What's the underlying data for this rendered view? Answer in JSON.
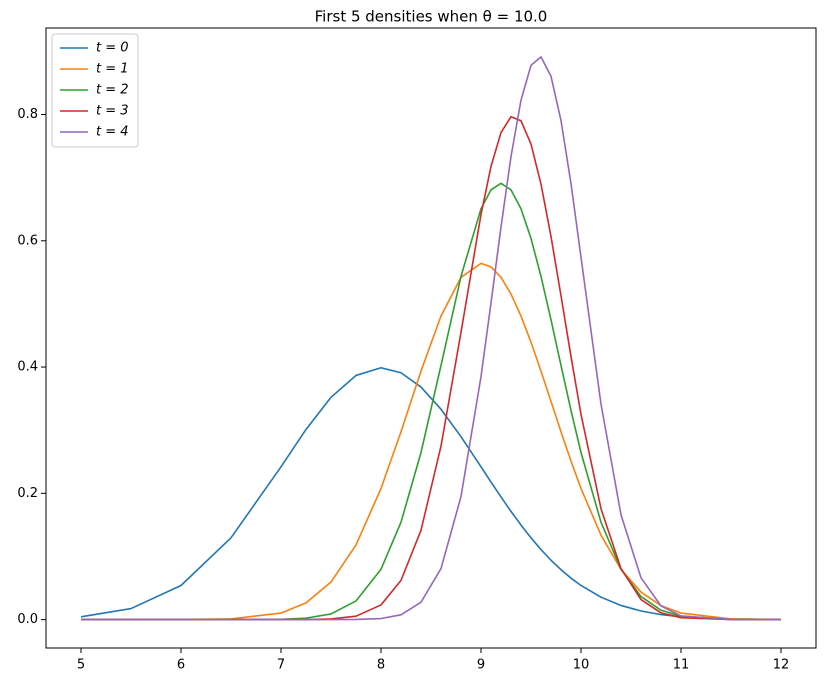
{
  "chart_data": {
    "type": "line",
    "title": "First 5 densities when θ = 10.0",
    "x": [
      5,
      5.5,
      6,
      6.5,
      7,
      7.25,
      7.5,
      7.75,
      8,
      8.2,
      8.4,
      8.6,
      8.8,
      9,
      9.1,
      9.2,
      9.3,
      9.4,
      9.5,
      9.6,
      9.7,
      9.8,
      9.9,
      10,
      10.2,
      10.4,
      10.6,
      10.8,
      11,
      11.5,
      12
    ],
    "series": [
      {
        "name": "t = 0",
        "color": "#1f77b4",
        "values": [
          0.0044,
          0.0175,
          0.054,
          0.1295,
          0.242,
          0.3011,
          0.3521,
          0.3867,
          0.3989,
          0.391,
          0.3683,
          0.3332,
          0.2897,
          0.242,
          0.2179,
          0.1942,
          0.1714,
          0.1497,
          0.1295,
          0.1109,
          0.094,
          0.079,
          0.0656,
          0.054,
          0.0355,
          0.0224,
          0.0136,
          0.0079,
          0.0044,
          0.0009,
          0.0001
        ]
      },
      {
        "name": "t = 1",
        "color": "#ff7f0e",
        "values": [
          0,
          0,
          0.0001,
          0.0011,
          0.0103,
          0.0264,
          0.0595,
          0.1182,
          0.2076,
          0.2975,
          0.3936,
          0.4808,
          0.5421,
          0.5642,
          0.5586,
          0.5421,
          0.5156,
          0.4808,
          0.4394,
          0.3936,
          0.3456,
          0.2975,
          0.251,
          0.2076,
          0.1337,
          0.0795,
          0.0436,
          0.0221,
          0.0103,
          0.0011,
          0.0001
        ]
      },
      {
        "name": "t = 2",
        "color": "#2ca02c",
        "values": [
          0,
          0,
          0,
          0,
          0.0005,
          0.0023,
          0.009,
          0.0295,
          0.0797,
          0.1542,
          0.2646,
          0.4026,
          0.5436,
          0.6508,
          0.6807,
          0.691,
          0.6807,
          0.6508,
          0.6037,
          0.5436,
          0.4749,
          0.4026,
          0.3313,
          0.2646,
          0.1542,
          0.0797,
          0.0365,
          0.0148,
          0.0054,
          0.0002,
          0
        ]
      },
      {
        "name": "t = 3",
        "color": "#d62728",
        "values": [
          0,
          0,
          0,
          0,
          0,
          0.0001,
          0.001,
          0.0054,
          0.0232,
          0.0621,
          0.1414,
          0.2748,
          0.4549,
          0.6417,
          0.7178,
          0.7714,
          0.7965,
          0.7901,
          0.7531,
          0.6896,
          0.6068,
          0.513,
          0.4166,
          0.3251,
          0.1756,
          0.0808,
          0.0317,
          0.0106,
          0.003,
          0.0001,
          0
        ]
      },
      {
        "name": "t = 4",
        "color": "#9467bd",
        "values": [
          0,
          0,
          0,
          0,
          0,
          0,
          0,
          0.0002,
          0.0017,
          0.0076,
          0.0275,
          0.0808,
          0.1949,
          0.3848,
          0.5015,
          0.6218,
          0.7333,
          0.8227,
          0.8779,
          0.8912,
          0.8605,
          0.7904,
          0.6906,
          0.574,
          0.3412,
          0.1661,
          0.0662,
          0.0216,
          0.0058,
          0.0001,
          0
        ]
      }
    ],
    "xlim": [
      4.65,
      12.35
    ],
    "xticks": [
      5,
      6,
      7,
      8,
      9,
      10,
      11,
      12
    ],
    "ylim": [
      -0.045,
      0.937
    ],
    "yticks": [
      {
        "value": 0,
        "label": "0.0"
      },
      {
        "value": 0.2,
        "label": "0.2"
      },
      {
        "value": 0.4,
        "label": "0.4"
      },
      {
        "value": 0.6,
        "label": "0.6"
      },
      {
        "value": 0.8,
        "label": "0.8"
      }
    ],
    "legend": "upper left"
  }
}
